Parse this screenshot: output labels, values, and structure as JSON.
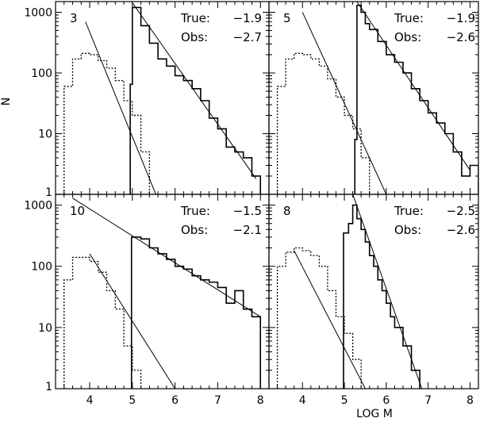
{
  "chart_data": {
    "type": "step",
    "xlabel": "LOG M",
    "ylabel": "N",
    "xlim": [
      3.2,
      8.2
    ],
    "ylim": [
      1,
      1500
    ],
    "yscale": "log",
    "xticks": [
      "4",
      "5",
      "6",
      "7",
      "8"
    ],
    "yticks": [
      "1",
      "10",
      "100",
      "1000"
    ],
    "panels": [
      {
        "id": "3",
        "true_label": "True:",
        "true_value": "−1.9",
        "obs_label": "Obs:",
        "obs_value": "−2.7",
        "observed_hist": {
          "edges": [
            4.95,
            5.0,
            5.2,
            5.4,
            5.6,
            5.8,
            6.0,
            6.2,
            6.4,
            6.6,
            6.8,
            7.0,
            7.2,
            7.4,
            7.6,
            7.8,
            8.0
          ],
          "counts": [
            65,
            1200,
            600,
            310,
            170,
            130,
            90,
            75,
            55,
            35,
            18,
            12,
            6,
            5,
            4,
            2
          ]
        },
        "dotted_hist": {
          "edges": [
            3.4,
            3.6,
            3.8,
            4.0,
            4.2,
            4.4,
            4.6,
            4.8,
            5.0,
            5.2,
            5.4
          ],
          "counts": [
            60,
            170,
            210,
            200,
            160,
            120,
            75,
            35,
            20,
            5
          ]
        },
        "true_fit": [
          [
            4.98,
            1500
          ],
          [
            7.9,
            1.8
          ]
        ],
        "obs_fit": [
          [
            3.9,
            700
          ],
          [
            5.55,
            1.0
          ]
        ]
      },
      {
        "id": "5",
        "true_label": "True:",
        "true_value": "−1.9",
        "obs_label": "Obs:",
        "obs_value": "−2.6",
        "observed_hist": {
          "edges": [
            5.25,
            5.3,
            5.4,
            5.5,
            5.6,
            5.8,
            6.0,
            6.2,
            6.4,
            6.6,
            6.8,
            7.0,
            7.2,
            7.4,
            7.6,
            7.8,
            8.0,
            8.2
          ],
          "counts": [
            8,
            1300,
            1000,
            650,
            520,
            330,
            200,
            150,
            100,
            55,
            35,
            22,
            15,
            10,
            5,
            2,
            3
          ]
        },
        "dotted_hist": {
          "edges": [
            3.4,
            3.6,
            3.8,
            4.0,
            4.2,
            4.4,
            4.6,
            4.8,
            5.0,
            5.2,
            5.4,
            5.6
          ],
          "counts": [
            60,
            170,
            210,
            200,
            170,
            130,
            80,
            40,
            20,
            12,
            4
          ]
        },
        "true_fit": [
          [
            5.3,
            1500
          ],
          [
            8.0,
            2.5
          ]
        ],
        "obs_fit": [
          [
            4.0,
            1000
          ],
          [
            6.0,
            1.0
          ]
        ]
      },
      {
        "id": "10",
        "true_label": "True:",
        "true_value": "−1.5",
        "obs_label": "Obs:",
        "obs_value": "−2.1",
        "observed_hist": {
          "edges": [
            4.98,
            5.0,
            5.2,
            5.4,
            5.6,
            5.8,
            6.0,
            6.2,
            6.4,
            6.6,
            6.8,
            7.0,
            7.2,
            7.4,
            7.6,
            7.8,
            8.0
          ],
          "counts": [
            300,
            300,
            280,
            200,
            160,
            130,
            100,
            90,
            70,
            60,
            55,
            45,
            25,
            40,
            20,
            15
          ]
        },
        "dotted_hist": {
          "edges": [
            3.4,
            3.6,
            3.8,
            4.0,
            4.2,
            4.4,
            4.6,
            4.8,
            5.0,
            5.2,
            5.3
          ],
          "counts": [
            60,
            140,
            140,
            120,
            80,
            40,
            20,
            5,
            2,
            1
          ]
        },
        "true_fit": [
          [
            3.6,
            1300
          ],
          [
            8.0,
            15
          ]
        ],
        "obs_fit": [
          [
            4.0,
            160
          ],
          [
            6.0,
            1.0
          ]
        ]
      },
      {
        "id": "8",
        "true_label": "True:",
        "true_value": "−2.5",
        "obs_label": "Obs:",
        "obs_value": "−2.6",
        "observed_hist": {
          "edges": [
            4.98,
            5.0,
            5.1,
            5.2,
            5.3,
            5.4,
            5.5,
            5.6,
            5.7,
            5.8,
            5.9,
            6.0,
            6.1,
            6.2,
            6.4,
            6.6,
            6.8
          ],
          "counts": [
            350,
            350,
            500,
            1000,
            600,
            400,
            250,
            150,
            100,
            60,
            40,
            25,
            15,
            10,
            5,
            2
          ]
        },
        "dotted_hist": {
          "edges": [
            3.4,
            3.6,
            3.8,
            4.0,
            4.2,
            4.4,
            4.6,
            4.8,
            5.0,
            5.2,
            5.4
          ],
          "counts": [
            100,
            170,
            200,
            180,
            150,
            100,
            40,
            15,
            8,
            3
          ]
        },
        "true_fit": [
          [
            5.2,
            1500
          ],
          [
            6.85,
            1.0
          ]
        ],
        "obs_fit": [
          [
            3.8,
            180
          ],
          [
            5.5,
            1.0
          ]
        ]
      }
    ]
  }
}
